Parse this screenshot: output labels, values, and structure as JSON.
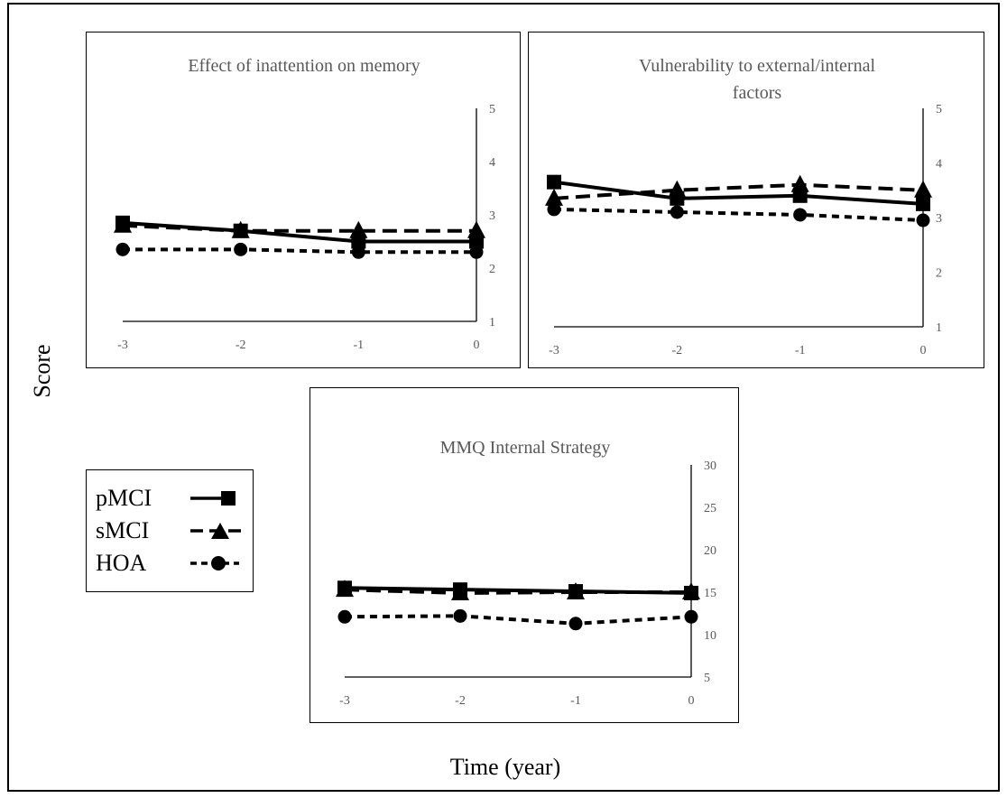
{
  "figure": {
    "y_axis_label": "Score",
    "x_axis_label": "Time (year)"
  },
  "legend": {
    "items": [
      {
        "label": "pMCI",
        "line": "solid",
        "marker": "square"
      },
      {
        "label": "sMCI",
        "line": "longdash",
        "marker": "triangle"
      },
      {
        "label": "HOA",
        "line": "shortdash",
        "marker": "circle"
      }
    ]
  },
  "colors": {
    "series": "#000000",
    "title_text": "#595959",
    "tick_text": "#595959",
    "background": "#ffffff"
  },
  "chart_data": [
    {
      "type": "line",
      "title_lines": [
        "Effect of inattention on memory"
      ],
      "xlabel": "",
      "ylabel": "",
      "x": [
        -3,
        -2,
        -1,
        0
      ],
      "xticks": [
        "-3",
        "-2",
        "-1",
        "0"
      ],
      "ylim": [
        1,
        5
      ],
      "yticks": [
        "1",
        "2",
        "3",
        "4",
        "5"
      ],
      "y_axis_side": "right",
      "grid": false,
      "series": [
        {
          "name": "pMCI",
          "values": [
            2.85,
            2.7,
            2.5,
            2.5
          ]
        },
        {
          "name": "sMCI",
          "values": [
            2.8,
            2.7,
            2.7,
            2.7
          ]
        },
        {
          "name": "HOA",
          "values": [
            2.35,
            2.35,
            2.3,
            2.3
          ]
        }
      ]
    },
    {
      "type": "line",
      "title_lines": [
        "Vulnerability to external/internal",
        "factors"
      ],
      "xlabel": "",
      "ylabel": "",
      "x": [
        -3,
        -2,
        -1,
        0
      ],
      "xticks": [
        "-3",
        "-2",
        "-1",
        "0"
      ],
      "ylim": [
        1,
        5
      ],
      "yticks": [
        "1",
        "2",
        "3",
        "4",
        "5"
      ],
      "y_axis_side": "right",
      "grid": false,
      "series": [
        {
          "name": "pMCI",
          "values": [
            3.65,
            3.35,
            3.4,
            3.25
          ]
        },
        {
          "name": "sMCI",
          "values": [
            3.35,
            3.5,
            3.6,
            3.5
          ]
        },
        {
          "name": "HOA",
          "values": [
            3.15,
            3.1,
            3.05,
            2.95
          ]
        }
      ]
    },
    {
      "type": "line",
      "title_lines": [
        "MMQ Internal Strategy"
      ],
      "xlabel": "",
      "ylabel": "",
      "x": [
        -3,
        -2,
        -1,
        0
      ],
      "xticks": [
        "-3",
        "-2",
        "-1",
        "0"
      ],
      "ylim": [
        5,
        30
      ],
      "yticks": [
        "5",
        "10",
        "15",
        "20",
        "25",
        "30"
      ],
      "y_axis_side": "right",
      "grid": false,
      "series": [
        {
          "name": "pMCI",
          "values": [
            15.5,
            15.3,
            15.1,
            14.9
          ]
        },
        {
          "name": "sMCI",
          "values": [
            15.3,
            14.9,
            15.0,
            15.0
          ]
        },
        {
          "name": "HOA",
          "values": [
            12.1,
            12.2,
            11.3,
            12.1
          ]
        }
      ]
    }
  ]
}
